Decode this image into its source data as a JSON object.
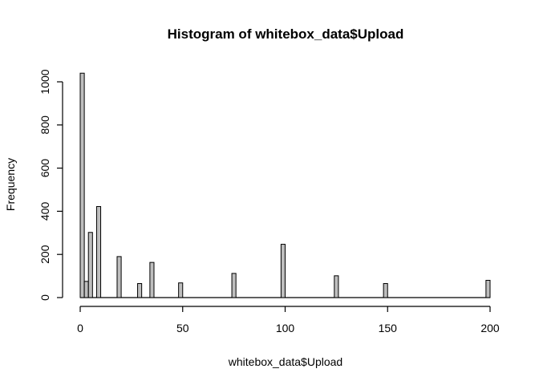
{
  "chart_data": {
    "type": "bar",
    "title": "Histogram of whitebox_data$Upload",
    "xlabel": "whitebox_data$Upload",
    "ylabel": "Frequency",
    "xlim": [
      0,
      200
    ],
    "ylim": [
      0,
      1050
    ],
    "bin_width": 2,
    "x_ticks": [
      0,
      50,
      100,
      150,
      200
    ],
    "y_ticks": [
      0,
      200,
      400,
      600,
      800,
      1000
    ],
    "bars": [
      {
        "x0": 0,
        "x1": 2,
        "value": 1040
      },
      {
        "x0": 2,
        "x1": 4,
        "value": 75
      },
      {
        "x0": 4,
        "x1": 6,
        "value": 302
      },
      {
        "x0": 8,
        "x1": 10,
        "value": 422
      },
      {
        "x0": 18,
        "x1": 20,
        "value": 190
      },
      {
        "x0": 28,
        "x1": 30,
        "value": 65
      },
      {
        "x0": 34,
        "x1": 36,
        "value": 163
      },
      {
        "x0": 48,
        "x1": 50,
        "value": 68
      },
      {
        "x0": 74,
        "x1": 76,
        "value": 112
      },
      {
        "x0": 98,
        "x1": 100,
        "value": 247
      },
      {
        "x0": 124,
        "x1": 126,
        "value": 101
      },
      {
        "x0": 148,
        "x1": 150,
        "value": 65
      },
      {
        "x0": 198,
        "x1": 200,
        "value": 80
      }
    ],
    "fill_color": "#bebebe",
    "grid": false
  }
}
